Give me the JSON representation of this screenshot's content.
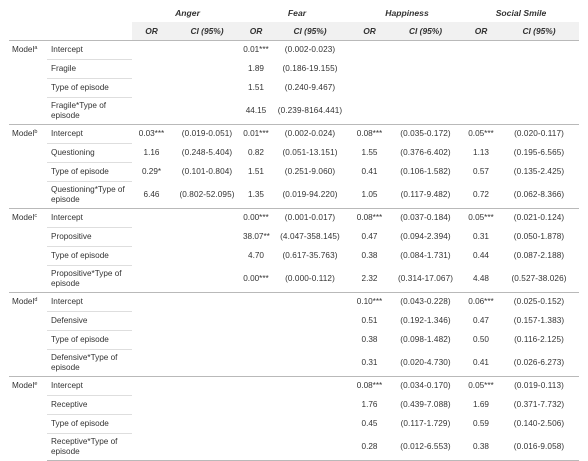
{
  "headers": {
    "emotions": [
      "Anger",
      "Fear",
      "Happiness",
      "Social Smile"
    ],
    "or_label": "OR",
    "ci_label": "CI (95%)"
  },
  "models": [
    {
      "label": "Model",
      "sup": "a",
      "rows": [
        {
          "predictor": "Intercept",
          "cells": [
            [
              "",
              ""
            ],
            [
              "0.01***",
              "(0.002-0.023)"
            ],
            [
              "",
              ""
            ],
            [
              "",
              ""
            ]
          ]
        },
        {
          "predictor": "Fragile",
          "cells": [
            [
              "",
              ""
            ],
            [
              "1.89",
              "(0.186-19.155)"
            ],
            [
              "",
              ""
            ],
            [
              "",
              ""
            ]
          ]
        },
        {
          "predictor": "Type of episode",
          "cells": [
            [
              "",
              ""
            ],
            [
              "1.51",
              "(0.240-9.467)"
            ],
            [
              "",
              ""
            ],
            [
              "",
              ""
            ]
          ]
        },
        {
          "predictor": "Fragile*Type of episode",
          "cells": [
            [
              "",
              ""
            ],
            [
              "44.15",
              "(0.239-8164.441)"
            ],
            [
              "",
              ""
            ],
            [
              "",
              ""
            ]
          ]
        }
      ]
    },
    {
      "label": "Model",
      "sup": "b",
      "rows": [
        {
          "predictor": "Intercept",
          "cells": [
            [
              "0.03***",
              "(0.019-0.051)"
            ],
            [
              "0.01***",
              "(0.002-0.024)"
            ],
            [
              "0.08***",
              "(0.035-0.172)"
            ],
            [
              "0.05***",
              "(0.020-0.117)"
            ]
          ]
        },
        {
          "predictor": "Questioning",
          "cells": [
            [
              "1.16",
              "(0.248-5.404)"
            ],
            [
              "0.82",
              "(0.051-13.151)"
            ],
            [
              "1.55",
              "(0.376-6.402)"
            ],
            [
              "1.13",
              "(0.195-6.565)"
            ]
          ]
        },
        {
          "predictor": "Type of episode",
          "cells": [
            [
              "0.29*",
              "(0.101-0.804)"
            ],
            [
              "1.51",
              "(0.251-9.060)"
            ],
            [
              "0.41",
              "(0.106-1.582)"
            ],
            [
              "0.57",
              "(0.135-2.425)"
            ]
          ]
        },
        {
          "predictor": "Questioning*Type of episode",
          "cells": [
            [
              "6.46",
              "(0.802-52.095)"
            ],
            [
              "1.35",
              "(0.019-94.220)"
            ],
            [
              "1.05",
              "(0.117-9.482)"
            ],
            [
              "0.72",
              "(0.062-8.366)"
            ]
          ]
        }
      ]
    },
    {
      "label": "Model",
      "sup": "c",
      "rows": [
        {
          "predictor": "Intercept",
          "cells": [
            [
              "",
              ""
            ],
            [
              "0.00***",
              "(0.001-0.017)"
            ],
            [
              "0.08***",
              "(0.037-0.184)"
            ],
            [
              "0.05***",
              "(0.021-0.124)"
            ]
          ]
        },
        {
          "predictor": "Propositive",
          "cells": [
            [
              "",
              ""
            ],
            [
              "38.07**",
              "(4.047-358.145)"
            ],
            [
              "0.47",
              "(0.094-2.394)"
            ],
            [
              "0.31",
              "(0.050-1.878)"
            ]
          ]
        },
        {
          "predictor": "Type of episode",
          "cells": [
            [
              "",
              ""
            ],
            [
              "4.70",
              "(0.617-35.763)"
            ],
            [
              "0.38",
              "(0.084-1.731)"
            ],
            [
              "0.44",
              "(0.087-2.188)"
            ]
          ]
        },
        {
          "predictor": "Propositive*Type of episode",
          "cells": [
            [
              "",
              ""
            ],
            [
              "0.00***",
              "(0.000-0.112)"
            ],
            [
              "2.32",
              "(0.314-17.067)"
            ],
            [
              "4.48",
              "(0.527-38.026)"
            ]
          ]
        }
      ]
    },
    {
      "label": "Model",
      "sup": "d",
      "rows": [
        {
          "predictor": "Intercept",
          "cells": [
            [
              "",
              ""
            ],
            [
              "",
              ""
            ],
            [
              "0.10***",
              "(0.043-0.228)"
            ],
            [
              "0.06***",
              "(0.025-0.152)"
            ]
          ]
        },
        {
          "predictor": "Defensive",
          "cells": [
            [
              "",
              ""
            ],
            [
              "",
              ""
            ],
            [
              "0.51",
              "(0.192-1.346)"
            ],
            [
              "0.47",
              "(0.157-1.383)"
            ]
          ]
        },
        {
          "predictor": "Type of episode",
          "cells": [
            [
              "",
              ""
            ],
            [
              "",
              ""
            ],
            [
              "0.38",
              "(0.098-1.482)"
            ],
            [
              "0.50",
              "(0.116-2.125)"
            ]
          ]
        },
        {
          "predictor": "Defensive*Type of episode",
          "cells": [
            [
              "",
              ""
            ],
            [
              "",
              ""
            ],
            [
              "0.31",
              "(0.020-4.730)"
            ],
            [
              "0.41",
              "(0.026-6.273)"
            ]
          ]
        }
      ]
    },
    {
      "label": "Model",
      "sup": "e",
      "rows": [
        {
          "predictor": "Intercept",
          "cells": [
            [
              "",
              ""
            ],
            [
              "",
              ""
            ],
            [
              "0.08***",
              "(0.034-0.170)"
            ],
            [
              "0.05***",
              "(0.019-0.113)"
            ]
          ]
        },
        {
          "predictor": "Receptive",
          "cells": [
            [
              "",
              ""
            ],
            [
              "",
              ""
            ],
            [
              "1.76",
              "(0.439-7.088)"
            ],
            [
              "1.69",
              "(0.371-7.732)"
            ]
          ]
        },
        {
          "predictor": "Type of episode",
          "cells": [
            [
              "",
              ""
            ],
            [
              "",
              ""
            ],
            [
              "0.45",
              "(0.117-1.729)"
            ],
            [
              "0.59",
              "(0.140-2.506)"
            ]
          ]
        },
        {
          "predictor": "Receptive*Type of episode",
          "cells": [
            [
              "",
              ""
            ],
            [
              "",
              ""
            ],
            [
              "0.28",
              "(0.012-6.553)"
            ],
            [
              "0.38",
              "(0.016-9.058)"
            ]
          ]
        }
      ]
    }
  ]
}
